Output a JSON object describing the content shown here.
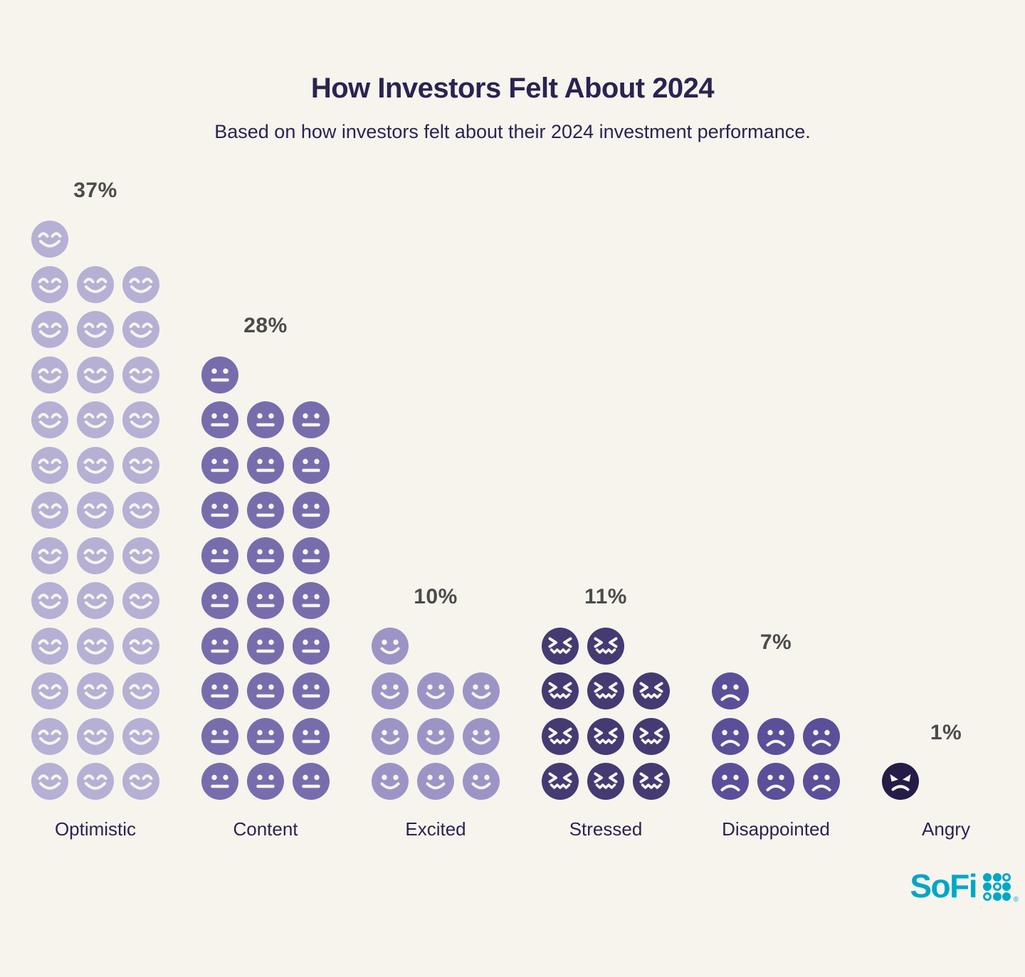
{
  "title": "How Investors Felt About 2024",
  "subtitle": "Based on how investors felt about their 2024 investment performance.",
  "colors": {
    "background": "#f7f4ee",
    "heading": "#2b2350",
    "percent_label": "#4b4b4b",
    "category_label": "#2b2350"
  },
  "brand": {
    "name": "SoFi",
    "registered_mark": "®",
    "color": "#00a7c6"
  },
  "chart_data": {
    "type": "bar",
    "subtype": "pictogram",
    "title": "How Investors Felt About 2024",
    "subtitle": "Based on how investors felt about their 2024 investment performance.",
    "unit": "percent of investors",
    "icon_unit": "1 face icon = 1%",
    "icons_per_row": 3,
    "layout_hint": "columns bottom-aligned; remainder icons form a left-aligned partial top row; percent label above each column; category label below",
    "categories": [
      "Optimistic",
      "Content",
      "Excited",
      "Stressed",
      "Disappointed",
      "Angry"
    ],
    "values": [
      37,
      28,
      10,
      11,
      7,
      1
    ],
    "series": [
      {
        "label": "Optimistic",
        "value": 37,
        "value_label": "37%",
        "face": "happy-closed-eyes",
        "color": "#b6b0d4"
      },
      {
        "label": "Content",
        "value": 28,
        "value_label": "28%",
        "face": "neutral",
        "color": "#786dac"
      },
      {
        "label": "Excited",
        "value": 10,
        "value_label": "10%",
        "face": "smile",
        "color": "#9d94c6"
      },
      {
        "label": "Stressed",
        "value": 11,
        "value_label": "11%",
        "face": "scrunched",
        "color": "#453a72"
      },
      {
        "label": "Disappointed",
        "value": 7,
        "value_label": "7%",
        "face": "sad",
        "color": "#5b4f99"
      },
      {
        "label": "Angry",
        "value": 1,
        "value_label": "1%",
        "face": "angry",
        "color": "#251d47"
      }
    ]
  }
}
